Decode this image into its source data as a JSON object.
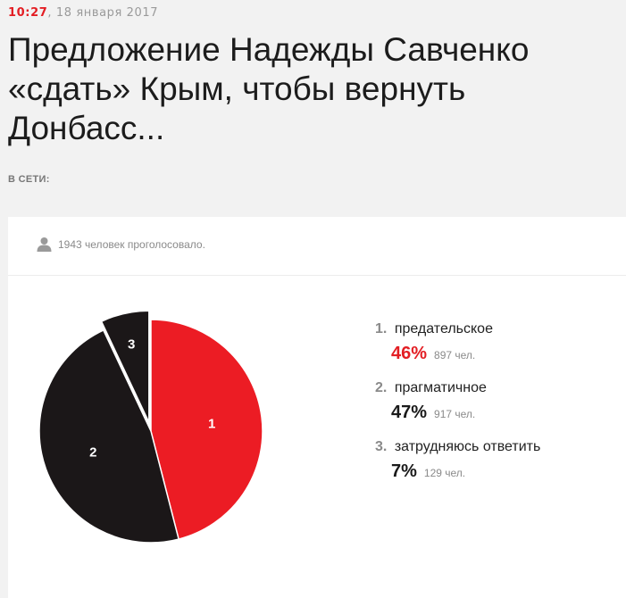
{
  "header": {
    "time": "10:27",
    "date": ", 18 января 2017",
    "title": "Предложение Надежды Савченко «сдать» Крым, чтобы вернуть Донбасс...",
    "section_label": "В СЕТИ:"
  },
  "poll": {
    "votes_text": "1943 человек проголосовало.",
    "icon": "user-icon"
  },
  "colors": {
    "accent": "#e31e24",
    "dark": "#1b1718"
  },
  "chart_data": {
    "type": "pie",
    "title": "",
    "categories": [
      "1",
      "2",
      "3"
    ],
    "labels": [
      "предательское",
      "прагматичное",
      "затрудняюсь ответить"
    ],
    "values": [
      46,
      47,
      7
    ],
    "percents": [
      "46%",
      "47%",
      "7%"
    ],
    "counts": [
      897,
      917,
      129
    ],
    "count_labels": [
      "897 чел.",
      "917 чел.",
      "129 чел."
    ],
    "colors": [
      "#ec1c24",
      "#1b1718",
      "#1b1718"
    ],
    "legend_position": "right"
  }
}
